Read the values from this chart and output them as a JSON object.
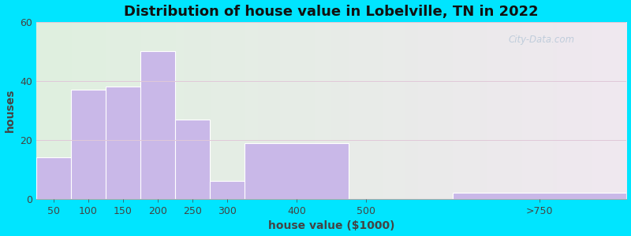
{
  "title": "Distribution of house value in Lobelville, TN in 2022",
  "xlabel": "house value ($1000)",
  "ylabel": "houses",
  "tick_positions": [
    50,
    100,
    150,
    200,
    250,
    300,
    400,
    500,
    750
  ],
  "tick_labels": [
    "50",
    "100",
    "150",
    "200",
    "250",
    "300",
    "400",
    "500",
    ">750"
  ],
  "bar_lefts": [
    25,
    75,
    125,
    175,
    225,
    275,
    325,
    475,
    625
  ],
  "bar_widths": [
    50,
    50,
    50,
    50,
    50,
    50,
    150,
    50,
    250
  ],
  "bar_heights": [
    14,
    37,
    38,
    50,
    27,
    6,
    19,
    0,
    2
  ],
  "bar_color": "#c9b8e8",
  "bar_edge_color": "#ffffff",
  "ylim": [
    0,
    60
  ],
  "xlim": [
    25,
    875
  ],
  "yticks": [
    0,
    20,
    40,
    60
  ],
  "title_fontsize": 13,
  "label_fontsize": 10,
  "tick_fontsize": 9,
  "bg_color_left": "#dff0df",
  "bg_color_right": "#f0e8f0",
  "outer_bg": "#00e5ff",
  "watermark_text": "City-Data.com",
  "watermark_color": "#b8c8d8"
}
